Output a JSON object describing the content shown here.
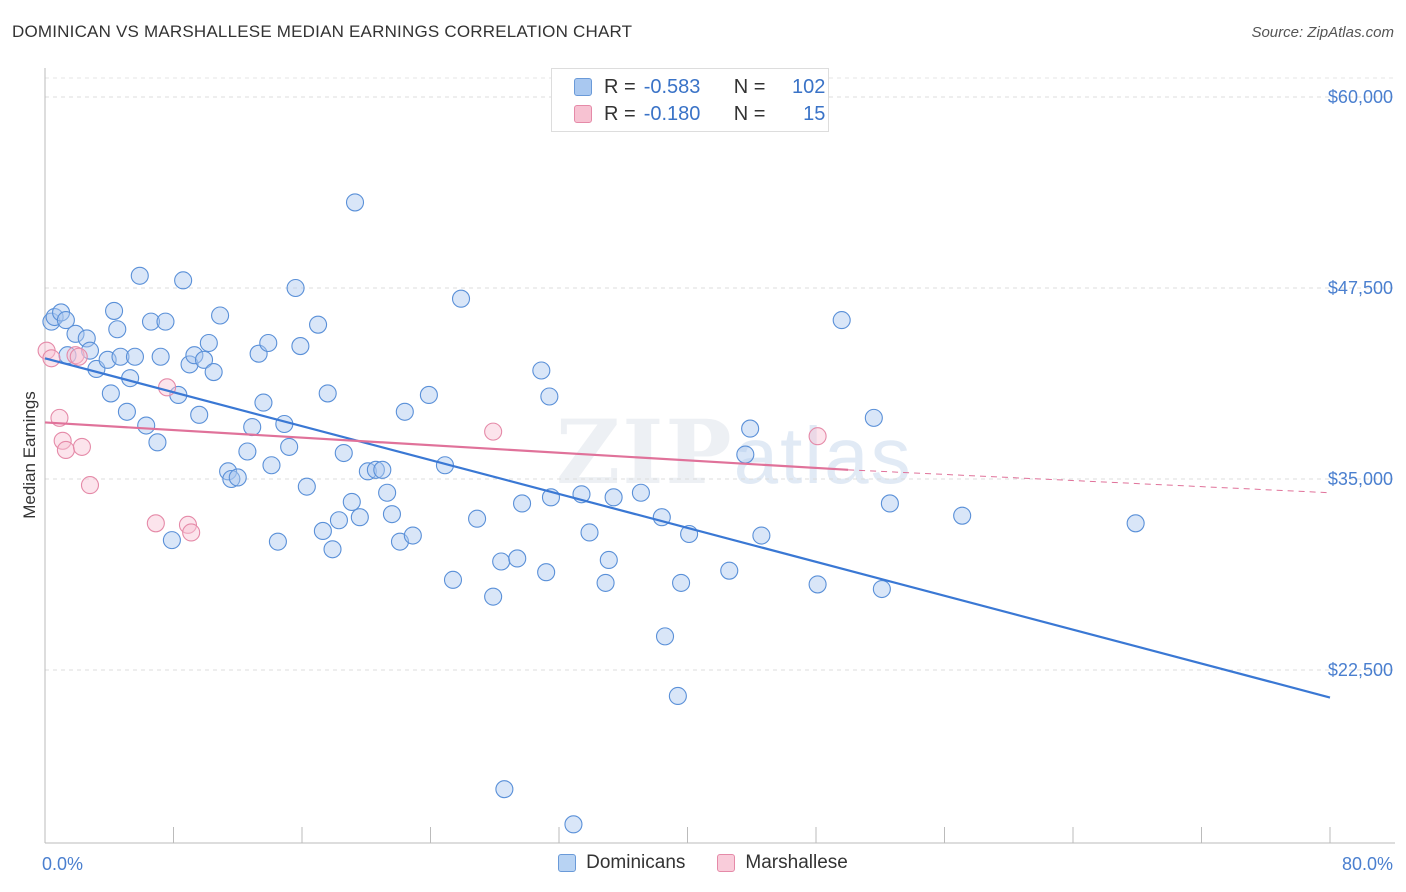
{
  "title": "DOMINICAN VS MARSHALLESE MEDIAN EARNINGS CORRELATION CHART",
  "source": "Source: ZipAtlas.com",
  "watermark": {
    "zip": "ZIP",
    "atlas": "atlas"
  },
  "legend_top": [
    {
      "r_label": "R =",
      "r_value": "-0.583",
      "n_label": "N =",
      "n_value": "102",
      "color": "#a9c8f0",
      "border": "#6a9ad8"
    },
    {
      "r_label": "R =",
      "r_value": "-0.180",
      "n_label": "N =",
      "n_value": "15",
      "color": "#f7c2d2",
      "border": "#e58aa8"
    }
  ],
  "legend_bottom": [
    {
      "label": "Dominicans",
      "color": "#b8d3f3",
      "border": "#6a9ad8"
    },
    {
      "label": "Marshallese",
      "color": "#f9ccda",
      "border": "#e58aa8"
    }
  ],
  "chart_data": {
    "type": "scatter",
    "xlabel": "",
    "ylabel": "Median Earnings",
    "xlim": [
      0,
      80
    ],
    "ylim": [
      10000,
      61000
    ],
    "x_tick_labels": [
      {
        "value": 0,
        "label": "0.0%"
      },
      {
        "value": 80,
        "label": "80.0%"
      }
    ],
    "y_ticks": [
      {
        "value": 60000,
        "label": "$60,000"
      },
      {
        "value": 47500,
        "label": "$47,500"
      },
      {
        "value": 35000,
        "label": "$35,000"
      },
      {
        "value": 22500,
        "label": "$22,500"
      }
    ],
    "colors": {
      "dominicans": "#3a78d4",
      "marshallese": "#e0729a",
      "tick_text": "#4a7fcf"
    },
    "series": [
      {
        "name": "Dominicans",
        "points": [
          [
            0.4,
            45.3
          ],
          [
            0.6,
            45.6
          ],
          [
            1,
            45.9
          ],
          [
            1.3,
            45.4
          ],
          [
            1.4,
            43.1
          ],
          [
            1.9,
            44.5
          ],
          [
            2.6,
            44.2
          ],
          [
            2.8,
            43.4
          ],
          [
            3.2,
            42.2
          ],
          [
            3.9,
            42.8
          ],
          [
            4.1,
            40.6
          ],
          [
            4.3,
            46.0
          ],
          [
            4.5,
            44.8
          ],
          [
            4.7,
            43.0
          ],
          [
            5.1,
            39.4
          ],
          [
            5.3,
            41.6
          ],
          [
            5.6,
            43.0
          ],
          [
            5.9,
            48.3
          ],
          [
            6.3,
            38.5
          ],
          [
            6.6,
            45.3
          ],
          [
            7.0,
            37.4
          ],
          [
            7.2,
            43.0
          ],
          [
            7.5,
            45.3
          ],
          [
            7.9,
            31.0
          ],
          [
            8.3,
            40.5
          ],
          [
            8.6,
            48.0
          ],
          [
            9.0,
            42.5
          ],
          [
            9.3,
            43.1
          ],
          [
            9.6,
            39.2
          ],
          [
            9.9,
            42.8
          ],
          [
            10.2,
            43.9
          ],
          [
            10.5,
            42.0
          ],
          [
            10.9,
            45.7
          ],
          [
            11.4,
            35.5
          ],
          [
            11.6,
            35.0
          ],
          [
            12.0,
            35.1
          ],
          [
            12.6,
            36.8
          ],
          [
            12.9,
            38.4
          ],
          [
            13.3,
            43.2
          ],
          [
            13.6,
            40.0
          ],
          [
            13.9,
            43.9
          ],
          [
            14.1,
            35.9
          ],
          [
            14.5,
            30.9
          ],
          [
            14.9,
            38.6
          ],
          [
            15.2,
            37.1
          ],
          [
            15.6,
            47.5
          ],
          [
            15.9,
            43.7
          ],
          [
            16.3,
            34.5
          ],
          [
            17.0,
            45.1
          ],
          [
            17.3,
            31.6
          ],
          [
            17.6,
            40.6
          ],
          [
            17.9,
            30.4
          ],
          [
            18.3,
            32.3
          ],
          [
            18.6,
            36.7
          ],
          [
            19.1,
            33.5
          ],
          [
            19.3,
            53.1
          ],
          [
            19.6,
            32.5
          ],
          [
            20.1,
            35.5
          ],
          [
            20.6,
            35.6
          ],
          [
            21.0,
            35.6
          ],
          [
            21.3,
            34.1
          ],
          [
            21.6,
            32.7
          ],
          [
            22.1,
            30.9
          ],
          [
            22.4,
            39.4
          ],
          [
            22.9,
            31.3
          ],
          [
            23.9,
            40.5
          ],
          [
            24.9,
            35.9
          ],
          [
            25.4,
            28.4
          ],
          [
            25.9,
            46.8
          ],
          [
            26.9,
            32.4
          ],
          [
            27.9,
            27.3
          ],
          [
            28.4,
            29.6
          ],
          [
            28.6,
            14.7
          ],
          [
            29.4,
            29.8
          ],
          [
            29.7,
            33.4
          ],
          [
            30.9,
            42.1
          ],
          [
            31.2,
            28.9
          ],
          [
            31.4,
            40.4
          ],
          [
            31.5,
            33.8
          ],
          [
            32.9,
            12.4
          ],
          [
            33.4,
            34.0
          ],
          [
            33.9,
            31.5
          ],
          [
            34.9,
            28.2
          ],
          [
            35.1,
            29.7
          ],
          [
            35.4,
            33.8
          ],
          [
            37.1,
            34.1
          ],
          [
            38.4,
            32.5
          ],
          [
            38.6,
            24.7
          ],
          [
            39.4,
            20.8
          ],
          [
            39.6,
            28.2
          ],
          [
            40.1,
            31.4
          ],
          [
            42.6,
            29.0
          ],
          [
            43.6,
            36.6
          ],
          [
            43.9,
            38.3
          ],
          [
            44.6,
            31.3
          ],
          [
            48.1,
            28.1
          ],
          [
            49.6,
            45.4
          ],
          [
            51.6,
            39.0
          ],
          [
            52.1,
            27.8
          ],
          [
            52.6,
            33.4
          ],
          [
            57.1,
            32.6
          ],
          [
            67.9,
            32.1
          ]
        ],
        "trend": {
          "x": [
            0,
            80
          ],
          "y": [
            42.9,
            20.7
          ]
        }
      },
      {
        "name": "Marshallese",
        "points": [
          [
            0.1,
            43.4
          ],
          [
            0.4,
            42.9
          ],
          [
            0.9,
            39.0
          ],
          [
            1.1,
            37.5
          ],
          [
            1.3,
            36.9
          ],
          [
            1.9,
            43.1
          ],
          [
            2.3,
            37.1
          ],
          [
            2.8,
            34.6
          ],
          [
            6.9,
            32.1
          ],
          [
            7.6,
            41.0
          ],
          [
            8.9,
            32.0
          ],
          [
            9.1,
            31.5
          ],
          [
            27.9,
            38.1
          ],
          [
            48.1,
            37.8
          ],
          [
            2.1,
            43.0
          ]
        ],
        "trend": {
          "x": [
            0,
            50
          ],
          "y": [
            38.7,
            35.6
          ]
        },
        "trend_dashed": {
          "x": [
            50,
            80
          ],
          "y": [
            35.6,
            34.1
          ]
        }
      }
    ]
  }
}
